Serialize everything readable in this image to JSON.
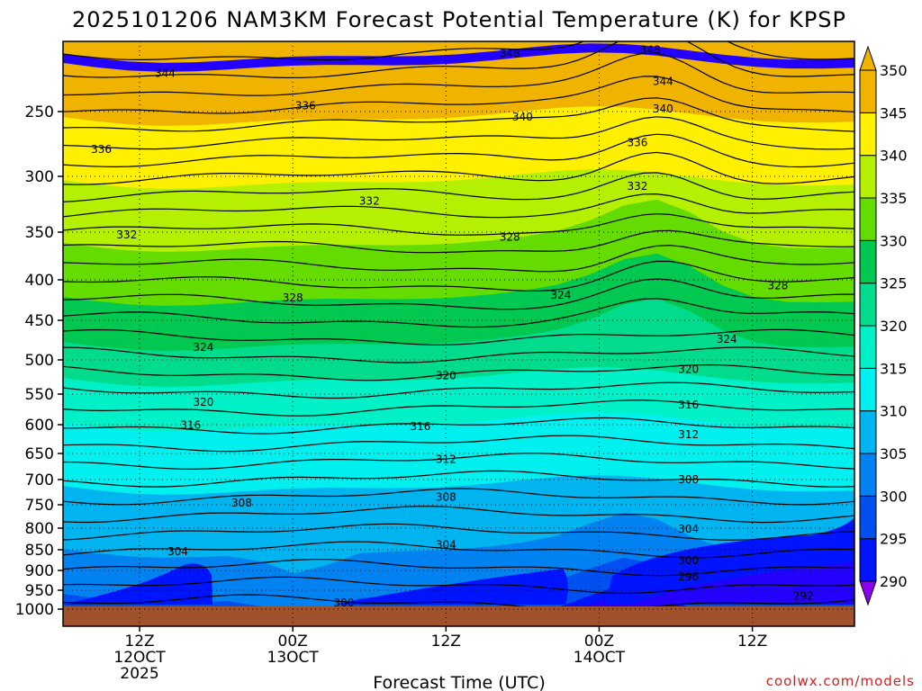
{
  "chart_data": {
    "type": "heatmap",
    "title": "2025101206 NAM3KM Forecast Potential Temperature (K) for KPSP",
    "xlabel": "Forecast Time (UTC)",
    "ylabel": "",
    "y_scale": "log",
    "y_direction": "pressure decreasing upward",
    "ylim": [
      1000,
      200
    ],
    "y_ticks": [
      "250",
      "300",
      "350",
      "400",
      "450",
      "500",
      "550",
      "600",
      "650",
      "700",
      "750",
      "800",
      "850",
      "900",
      "950",
      "1000"
    ],
    "x_range": [
      "2025-10-12T06Z",
      "2025-10-14T20Z"
    ],
    "x_ticks": [
      {
        "time": "2025-10-12T12Z",
        "lines": [
          "12Z",
          "12OCT",
          "2025"
        ]
      },
      {
        "time": "2025-10-13T00Z",
        "lines": [
          "00Z",
          "13OCT"
        ]
      },
      {
        "time": "2025-10-13T12Z",
        "lines": [
          "12Z"
        ]
      },
      {
        "time": "2025-10-14T00Z",
        "lines": [
          "00Z",
          "14OCT"
        ]
      },
      {
        "time": "2025-10-14T12Z",
        "lines": [
          "12Z"
        ]
      }
    ],
    "grid": true,
    "colorbar": {
      "placement": "right",
      "unit": "K",
      "levels": [
        290,
        295,
        300,
        305,
        310,
        315,
        320,
        325,
        330,
        335,
        340,
        345,
        350
      ],
      "labels": [
        "290",
        "295",
        "300",
        "305",
        "310",
        "315",
        "320",
        "325",
        "330",
        "335",
        "340",
        "345",
        "350"
      ],
      "colors": [
        "#2400ff",
        "#0014ff",
        "#0050f0",
        "#0082f0",
        "#00b4f0",
        "#00f0f0",
        "#00f0c8",
        "#00dc8c",
        "#00c850",
        "#64dc00",
        "#b4f000",
        "#fff000",
        "#f0b400"
      ],
      "under_color": "#8c00f0",
      "over_color": "#f0b400"
    },
    "contour_labels": [
      {
        "value": "348",
        "time": "2025-10-13T17Z",
        "pressure": 213
      },
      {
        "value": "348",
        "time": "2025-10-14T04Z",
        "pressure": 211
      },
      {
        "value": "344",
        "time": "2025-10-12T14Z",
        "pressure": 225
      },
      {
        "value": "344",
        "time": "2025-10-14T05Z",
        "pressure": 230
      },
      {
        "value": "340",
        "time": "2025-10-13T18Z",
        "pressure": 254
      },
      {
        "value": "340",
        "time": "2025-10-14T05Z",
        "pressure": 248
      },
      {
        "value": "336",
        "time": "2025-10-13T01Z",
        "pressure": 246
      },
      {
        "value": "336",
        "time": "2025-10-12T09Z",
        "pressure": 279
      },
      {
        "value": "336",
        "time": "2025-10-14T03Z",
        "pressure": 274
      },
      {
        "value": "332",
        "time": "2025-10-13T06Z",
        "pressure": 322
      },
      {
        "value": "332",
        "time": "2025-10-14T03Z",
        "pressure": 309
      },
      {
        "value": "332",
        "time": "2025-10-12T11Z",
        "pressure": 353
      },
      {
        "value": "328",
        "time": "2025-10-13T17Z",
        "pressure": 355
      },
      {
        "value": "328",
        "time": "2025-10-13T00Z",
        "pressure": 422
      },
      {
        "value": "328",
        "time": "2025-10-14T14Z",
        "pressure": 407
      },
      {
        "value": "324",
        "time": "2025-10-13T21Z",
        "pressure": 419
      },
      {
        "value": "324",
        "time": "2025-10-12T17Z",
        "pressure": 484
      },
      {
        "value": "324",
        "time": "2025-10-14T10Z",
        "pressure": 474
      },
      {
        "value": "320",
        "time": "2025-10-13T12Z",
        "pressure": 523
      },
      {
        "value": "320",
        "time": "2025-10-14T07Z",
        "pressure": 514
      },
      {
        "value": "320",
        "time": "2025-10-12T17Z",
        "pressure": 563
      },
      {
        "value": "316",
        "time": "2025-10-14T07Z",
        "pressure": 568
      },
      {
        "value": "316",
        "time": "2025-10-12T16Z",
        "pressure": 601
      },
      {
        "value": "316",
        "time": "2025-10-13T10Z",
        "pressure": 603
      },
      {
        "value": "312",
        "time": "2025-10-14T07Z",
        "pressure": 617
      },
      {
        "value": "312",
        "time": "2025-10-13T12Z",
        "pressure": 661
      },
      {
        "value": "308",
        "time": "2025-10-14T07Z",
        "pressure": 700
      },
      {
        "value": "308",
        "time": "2025-10-13T12Z",
        "pressure": 735
      },
      {
        "value": "308",
        "time": "2025-10-12T20Z",
        "pressure": 746
      },
      {
        "value": "304",
        "time": "2025-10-14T07Z",
        "pressure": 802
      },
      {
        "value": "304",
        "time": "2025-10-13T12Z",
        "pressure": 839
      },
      {
        "value": "304",
        "time": "2025-10-12T15Z",
        "pressure": 854
      },
      {
        "value": "300",
        "time": "2025-10-14T07Z",
        "pressure": 876
      },
      {
        "value": "300",
        "time": "2025-10-13T04Z",
        "pressure": 983
      },
      {
        "value": "296",
        "time": "2025-10-14T07Z",
        "pressure": 916
      },
      {
        "value": "292",
        "time": "2025-10-14T16Z",
        "pressure": 965
      }
    ]
  },
  "credit": "coolwx.com/models"
}
